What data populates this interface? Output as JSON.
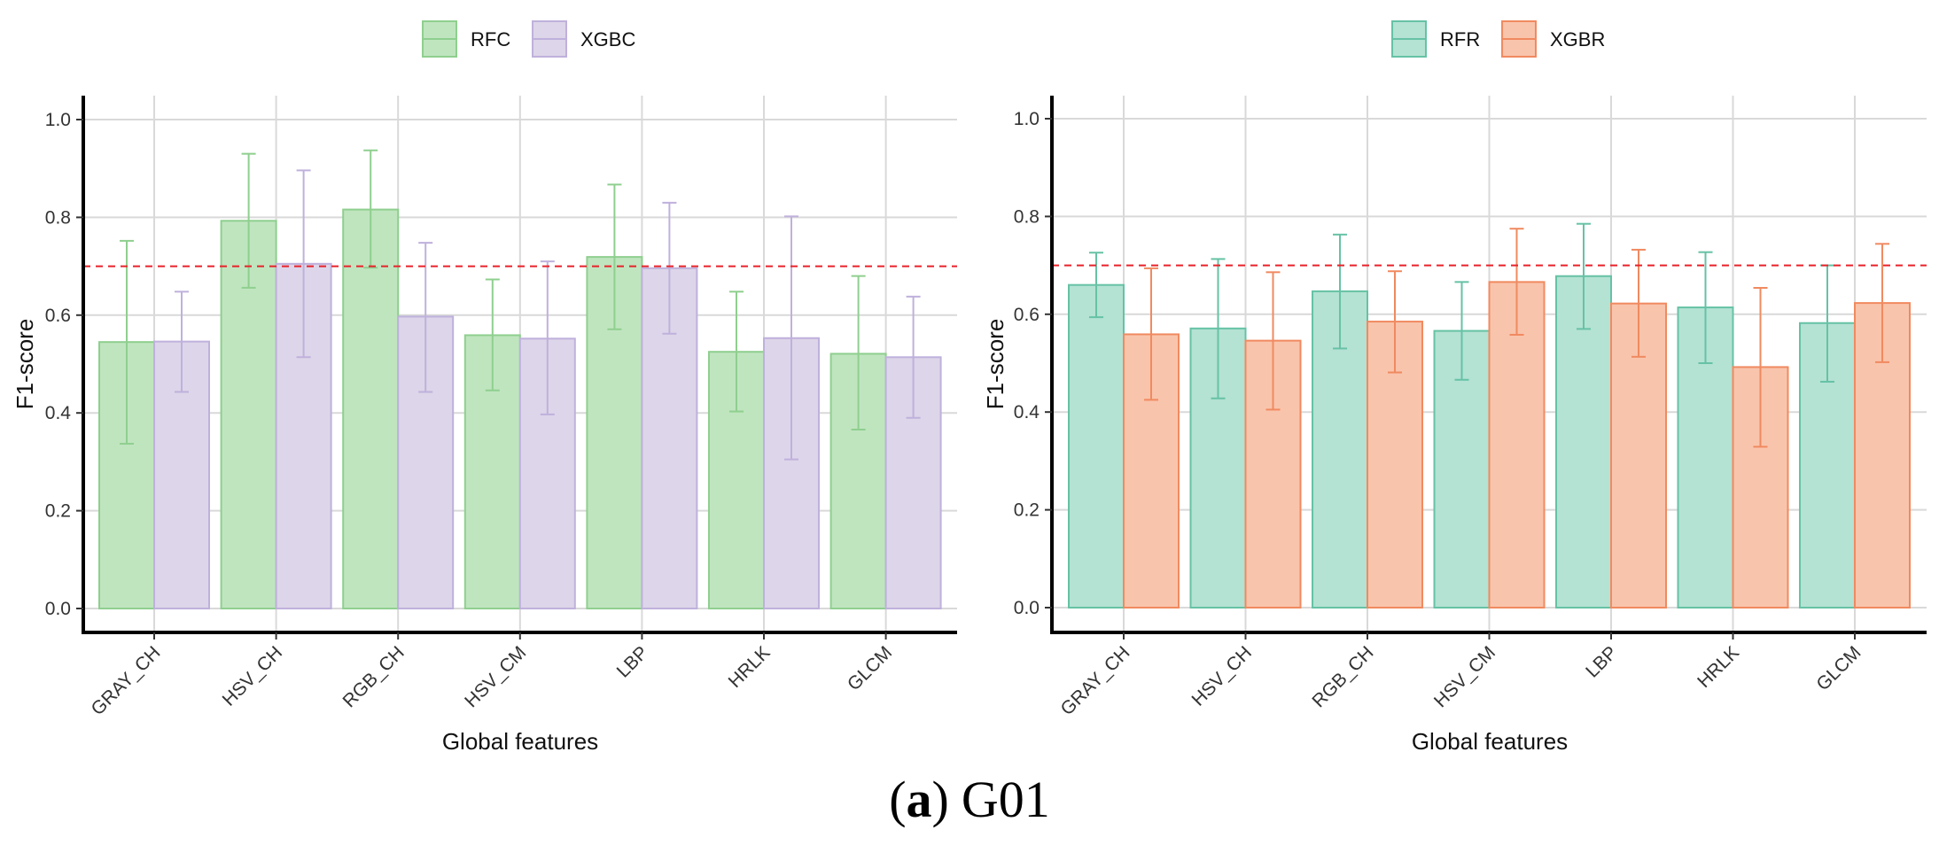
{
  "caption": {
    "open": "(",
    "letter": "a",
    "close": ")",
    "label": "G01"
  },
  "chart_data": [
    {
      "type": "bar",
      "xlabel": "Global features",
      "ylabel": "F1-score",
      "ylim": [
        0,
        1.0
      ],
      "yticks": [
        0.0,
        0.2,
        0.4,
        0.6,
        0.8,
        1.0
      ],
      "ytick_labels": [
        "0.0",
        "0.2",
        "0.4",
        "0.6",
        "0.8",
        "1.0"
      ],
      "grid": true,
      "legend_position": "top-center",
      "reference_line": {
        "y": 0.7,
        "color": "#e8222a",
        "style": "dashed"
      },
      "categories": [
        "GRAY_CH",
        "HSV_CH",
        "RGB_CH",
        "HSV_CM",
        "LBP",
        "HRLK",
        "GLCM"
      ],
      "series": [
        {
          "name": "RFC",
          "fill": "#bfe5bf",
          "stroke": "#8fcf8f",
          "values": [
            0.545,
            0.793,
            0.816,
            0.559,
            0.719,
            0.525,
            0.521
          ],
          "err_low": [
            0.337,
            0.656,
            0.697,
            0.446,
            0.571,
            0.403,
            0.366
          ],
          "err_high": [
            0.752,
            0.93,
            0.937,
            0.673,
            0.867,
            0.648,
            0.68
          ]
        },
        {
          "name": "XGBC",
          "fill": "#ddd5e9",
          "stroke": "#bfb1dc",
          "values": [
            0.546,
            0.705,
            0.597,
            0.552,
            0.696,
            0.553,
            0.514
          ],
          "err_low": [
            0.443,
            0.514,
            0.443,
            0.397,
            0.562,
            0.305,
            0.39
          ],
          "err_high": [
            0.648,
            0.896,
            0.748,
            0.71,
            0.83,
            0.802,
            0.638
          ]
        }
      ]
    },
    {
      "type": "bar",
      "xlabel": "Global features",
      "ylabel": "F1-score",
      "ylim": [
        0,
        1.0
      ],
      "yticks": [
        0.0,
        0.2,
        0.4,
        0.6,
        0.8,
        1.0
      ],
      "ytick_labels": [
        "0.0",
        "0.2",
        "0.4",
        "0.6",
        "0.8",
        "1.0"
      ],
      "grid": true,
      "legend_position": "top-center",
      "reference_line": {
        "y": 0.7,
        "color": "#e8222a",
        "style": "dashed"
      },
      "categories": [
        "GRAY_CH",
        "HSV_CH",
        "RGB_CH",
        "HSV_CM",
        "LBP",
        "HRLK",
        "GLCM"
      ],
      "series": [
        {
          "name": "RFR",
          "fill": "#b4e2d3",
          "stroke": "#66c2a5",
          "values": [
            0.66,
            0.571,
            0.647,
            0.566,
            0.678,
            0.614,
            0.582
          ],
          "err_low": [
            0.594,
            0.428,
            0.53,
            0.466,
            0.57,
            0.5,
            0.462
          ],
          "err_high": [
            0.726,
            0.713,
            0.763,
            0.666,
            0.785,
            0.727,
            0.7
          ]
        },
        {
          "name": "XGBR",
          "fill": "#f9c4ac",
          "stroke": "#f08a60",
          "values": [
            0.559,
            0.546,
            0.585,
            0.666,
            0.622,
            0.492,
            0.623
          ],
          "err_low": [
            0.425,
            0.405,
            0.481,
            0.558,
            0.513,
            0.329,
            0.502
          ],
          "err_high": [
            0.694,
            0.686,
            0.688,
            0.775,
            0.732,
            0.654,
            0.744
          ]
        }
      ]
    }
  ]
}
